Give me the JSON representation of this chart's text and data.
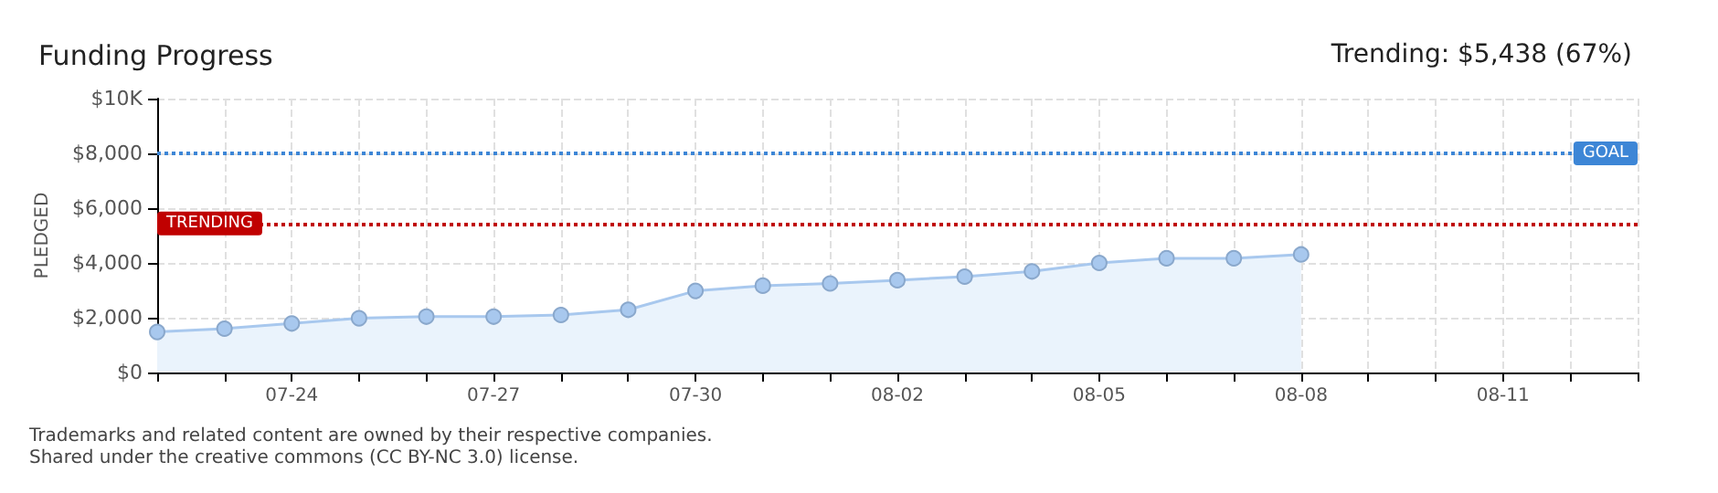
{
  "chart_data": {
    "type": "area",
    "title": "Funding Progress",
    "subtitle": "Trending: $5,438 (67%)",
    "ylabel": "PLEDGED",
    "categories": [
      null,
      null,
      "07-24",
      null,
      null,
      "07-27",
      null,
      null,
      "07-30",
      null,
      null,
      "08-02",
      null,
      null,
      "08-05",
      null,
      null,
      "08-08",
      null,
      null,
      "08-11",
      null,
      null
    ],
    "series": [
      {
        "color": "#a8c8ee",
        "values": [
          1480,
          1600,
          1790,
          1980,
          2040,
          2040,
          2100,
          2290,
          2980,
          3170,
          3250,
          3370,
          3500,
          3690,
          4000,
          4170,
          4170,
          4310,
          null,
          null,
          null,
          null,
          null
        ]
      }
    ],
    "ylim": [
      0,
      10000
    ],
    "yticks": [
      {
        "value": 0,
        "label": "$0"
      },
      {
        "value": 2000,
        "label": "$2,000"
      },
      {
        "value": 4000,
        "label": "$4,000"
      },
      {
        "value": 6000,
        "label": "$6,000"
      },
      {
        "value": 8000,
        "label": "$8,000"
      },
      {
        "value": 10000,
        "label": "$10K"
      }
    ],
    "ref_lines": [
      {
        "axis": "y",
        "value": 8000,
        "label": "GOAL",
        "color": "#3d86d6",
        "line_style": "dotted"
      },
      {
        "axis": "y",
        "value": 5438,
        "label": "TRENDING",
        "color": "#c00000",
        "line_style": "dotted"
      }
    ],
    "annotations": [
      "Trademarks and related content are owned by their respective companies.",
      "Shared under the creative commons (CC BY-NC 3.0) license."
    ],
    "grid": true,
    "marker": "circle"
  }
}
